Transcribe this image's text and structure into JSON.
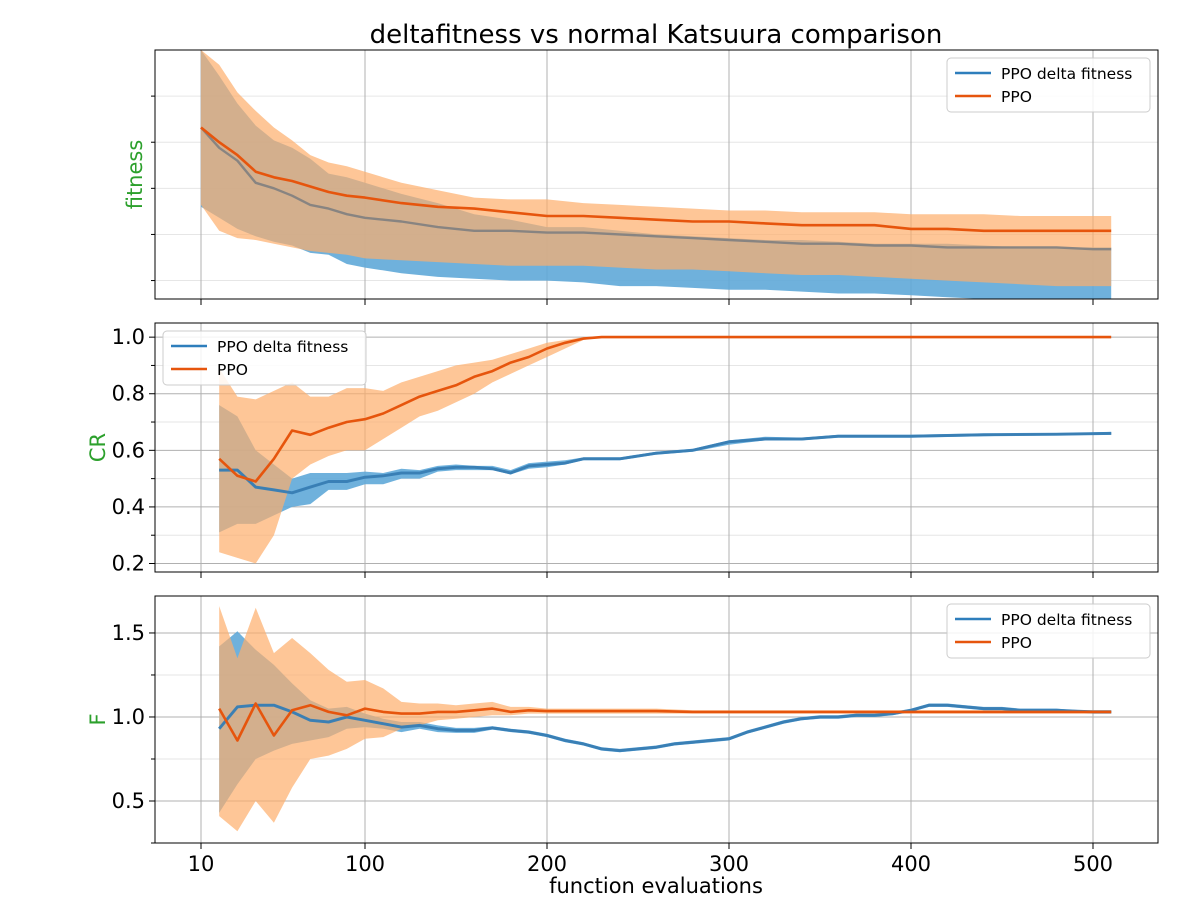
{
  "figure": {
    "title": "deltafitness vs normal Katsuura comparison",
    "xlabel": "function evaluations",
    "x_ticks": [
      "10",
      "100",
      "200",
      "300",
      "400",
      "500"
    ],
    "colors": {
      "delta_line": "#2e7ebc",
      "delta_band": "#5fa8d8",
      "ppo_line": "#e6550d",
      "ppo_band": "#fdae6b",
      "ylabel": "#2ca02c",
      "grid": "#b0b0b0",
      "grid_minor": "#e6e6e6"
    }
  },
  "chart_data": [
    {
      "type": "line",
      "panel": "fitness",
      "ylabel": "fitness",
      "y_ticks_labeled": false,
      "ylim": [
        0,
        1.35
      ],
      "xlim": [
        -15,
        535
      ],
      "grid": true,
      "legend": {
        "placement": "top-right",
        "entries": [
          "PPO delta fitness",
          "PPO"
        ]
      },
      "series": [
        {
          "name": "PPO delta fitness",
          "color": "#2e7ebc",
          "band_color": "#5fa8d8",
          "x": [
            10,
            20,
            30,
            40,
            50,
            60,
            70,
            80,
            90,
            100,
            120,
            140,
            160,
            180,
            200,
            220,
            240,
            260,
            280,
            300,
            320,
            340,
            360,
            380,
            400,
            420,
            440,
            460,
            480,
            500,
            510
          ],
          "mean": [
            0.93,
            0.82,
            0.75,
            0.63,
            0.6,
            0.56,
            0.51,
            0.49,
            0.46,
            0.44,
            0.42,
            0.39,
            0.37,
            0.37,
            0.36,
            0.36,
            0.35,
            0.34,
            0.33,
            0.32,
            0.31,
            0.3,
            0.3,
            0.29,
            0.29,
            0.28,
            0.28,
            0.28,
            0.28,
            0.27,
            0.27
          ],
          "lower": [
            0.5,
            0.44,
            0.38,
            0.34,
            0.31,
            0.29,
            0.25,
            0.24,
            0.19,
            0.17,
            0.14,
            0.12,
            0.11,
            0.1,
            0.1,
            0.09,
            0.07,
            0.07,
            0.06,
            0.05,
            0.05,
            0.04,
            0.03,
            0.03,
            0.02,
            0.01,
            0.0,
            0.0,
            0.0,
            0.0,
            0.0
          ],
          "upper": [
            1.35,
            1.21,
            1.06,
            0.94,
            0.86,
            0.82,
            0.76,
            0.68,
            0.66,
            0.63,
            0.57,
            0.52,
            0.46,
            0.43,
            0.39,
            0.39,
            0.37,
            0.35,
            0.34,
            0.33,
            0.32,
            0.32,
            0.31,
            0.3,
            0.3,
            0.3,
            0.29,
            0.28,
            0.28,
            0.28,
            0.28
          ]
        },
        {
          "name": "PPO",
          "color": "#e6550d",
          "band_color": "#fdae6b",
          "x": [
            10,
            20,
            30,
            40,
            50,
            60,
            70,
            80,
            90,
            100,
            120,
            140,
            160,
            180,
            200,
            220,
            240,
            260,
            280,
            300,
            320,
            340,
            360,
            380,
            400,
            420,
            440,
            460,
            480,
            500,
            510
          ],
          "mean": [
            0.93,
            0.85,
            0.78,
            0.69,
            0.66,
            0.64,
            0.61,
            0.58,
            0.56,
            0.55,
            0.52,
            0.5,
            0.49,
            0.47,
            0.45,
            0.45,
            0.44,
            0.43,
            0.42,
            0.42,
            0.41,
            0.4,
            0.4,
            0.4,
            0.38,
            0.38,
            0.37,
            0.37,
            0.37,
            0.37,
            0.37
          ],
          "lower": [
            0.51,
            0.37,
            0.33,
            0.32,
            0.3,
            0.28,
            0.26,
            0.25,
            0.24,
            0.22,
            0.21,
            0.2,
            0.19,
            0.18,
            0.18,
            0.18,
            0.17,
            0.16,
            0.16,
            0.15,
            0.14,
            0.13,
            0.13,
            0.12,
            0.11,
            0.1,
            0.09,
            0.08,
            0.07,
            0.07,
            0.07
          ],
          "upper": [
            1.35,
            1.27,
            1.12,
            1.02,
            0.93,
            0.86,
            0.78,
            0.74,
            0.72,
            0.69,
            0.63,
            0.59,
            0.55,
            0.54,
            0.54,
            0.52,
            0.51,
            0.5,
            0.49,
            0.48,
            0.48,
            0.47,
            0.47,
            0.47,
            0.46,
            0.46,
            0.46,
            0.45,
            0.45,
            0.45,
            0.45
          ]
        }
      ]
    },
    {
      "type": "line",
      "panel": "CR",
      "ylabel": "CR",
      "ylim": [
        0.17,
        1.05
      ],
      "xlim": [
        -15,
        535
      ],
      "y_ticks": [
        0.2,
        0.4,
        0.6,
        0.8,
        1.0
      ],
      "y_tick_labels": [
        "0.2",
        "0.4",
        "0.6",
        "0.8",
        "1.0"
      ],
      "grid": true,
      "legend": {
        "placement": "top-left",
        "entries": [
          "PPO delta fitness",
          "PPO"
        ]
      },
      "series": [
        {
          "name": "PPO delta fitness",
          "color": "#2e7ebc",
          "band_color": "#5fa8d8",
          "x": [
            20,
            30,
            40,
            50,
            60,
            70,
            80,
            90,
            100,
            110,
            120,
            130,
            140,
            150,
            160,
            170,
            180,
            190,
            200,
            210,
            220,
            240,
            260,
            280,
            300,
            320,
            340,
            360,
            380,
            400,
            440,
            480,
            510
          ],
          "mean": [
            0.53,
            0.53,
            0.47,
            0.46,
            0.45,
            0.47,
            0.49,
            0.49,
            0.505,
            0.51,
            0.52,
            0.52,
            0.535,
            0.54,
            0.54,
            0.535,
            0.52,
            0.545,
            0.55,
            0.555,
            0.57,
            0.57,
            0.59,
            0.6,
            0.63,
            0.64,
            0.64,
            0.65,
            0.65,
            0.65,
            0.655,
            0.657,
            0.66
          ],
          "lower": [
            0.31,
            0.34,
            0.34,
            0.37,
            0.4,
            0.41,
            0.46,
            0.46,
            0.48,
            0.48,
            0.5,
            0.5,
            0.525,
            0.53,
            0.53,
            0.53,
            0.515,
            0.535,
            0.54,
            0.55,
            0.565,
            0.565,
            0.585,
            0.595,
            0.62,
            0.635,
            0.635,
            0.645,
            0.645,
            0.645,
            0.65,
            0.655,
            0.655
          ],
          "upper": [
            0.76,
            0.72,
            0.6,
            0.55,
            0.5,
            0.52,
            0.52,
            0.52,
            0.525,
            0.52,
            0.535,
            0.53,
            0.545,
            0.55,
            0.545,
            0.545,
            0.53,
            0.555,
            0.56,
            0.565,
            0.575,
            0.575,
            0.595,
            0.605,
            0.635,
            0.648,
            0.645,
            0.655,
            0.655,
            0.655,
            0.66,
            0.66,
            0.665
          ]
        },
        {
          "name": "PPO",
          "color": "#e6550d",
          "band_color": "#fdae6b",
          "x": [
            20,
            30,
            40,
            50,
            60,
            70,
            80,
            90,
            100,
            110,
            120,
            130,
            140,
            150,
            160,
            170,
            180,
            190,
            200,
            210,
            220,
            230,
            240,
            260,
            280,
            300,
            340,
            400,
            460,
            510
          ],
          "mean": [
            0.57,
            0.51,
            0.49,
            0.57,
            0.67,
            0.655,
            0.68,
            0.7,
            0.71,
            0.73,
            0.76,
            0.79,
            0.81,
            0.83,
            0.86,
            0.88,
            0.91,
            0.93,
            0.96,
            0.98,
            0.995,
            1.0,
            1.0,
            1.0,
            1.0,
            1.0,
            1.0,
            1.0,
            1.0,
            1.0
          ],
          "lower": [
            0.24,
            0.22,
            0.2,
            0.3,
            0.5,
            0.55,
            0.58,
            0.6,
            0.6,
            0.64,
            0.68,
            0.72,
            0.74,
            0.77,
            0.8,
            0.84,
            0.87,
            0.9,
            0.93,
            0.96,
            0.99,
            1.0,
            1.0,
            1.0,
            1.0,
            1.0,
            1.0,
            1.0,
            1.0,
            1.0
          ],
          "upper": [
            0.89,
            0.79,
            0.78,
            0.81,
            0.84,
            0.79,
            0.79,
            0.82,
            0.82,
            0.81,
            0.84,
            0.86,
            0.88,
            0.9,
            0.91,
            0.92,
            0.94,
            0.96,
            0.98,
            0.99,
            1.0,
            1.0,
            1.0,
            1.0,
            1.0,
            1.0,
            1.0,
            1.0,
            1.0,
            1.0
          ]
        }
      ]
    },
    {
      "type": "line",
      "panel": "F",
      "ylabel": "F",
      "ylim": [
        0.25,
        1.72
      ],
      "xlim": [
        -15,
        535
      ],
      "y_ticks": [
        0.5,
        1.0,
        1.5
      ],
      "y_tick_labels": [
        "0.5",
        "1.0",
        "1.5"
      ],
      "grid": true,
      "legend": {
        "placement": "top-right",
        "entries": [
          "PPO delta fitness",
          "PPO"
        ]
      },
      "series": [
        {
          "name": "PPO delta fitness",
          "color": "#2e7ebc",
          "band_color": "#5fa8d8",
          "x": [
            20,
            30,
            40,
            50,
            60,
            70,
            80,
            90,
            100,
            110,
            120,
            130,
            140,
            150,
            160,
            170,
            180,
            190,
            200,
            210,
            220,
            230,
            240,
            250,
            260,
            270,
            280,
            290,
            300,
            310,
            320,
            330,
            340,
            350,
            360,
            370,
            380,
            390,
            400,
            410,
            420,
            430,
            440,
            450,
            460,
            470,
            480,
            490,
            500,
            510
          ],
          "mean": [
            0.93,
            1.06,
            1.07,
            1.07,
            1.03,
            0.98,
            0.97,
            1.0,
            0.98,
            0.96,
            0.94,
            0.95,
            0.93,
            0.92,
            0.92,
            0.935,
            0.92,
            0.91,
            0.89,
            0.86,
            0.84,
            0.81,
            0.8,
            0.81,
            0.82,
            0.84,
            0.85,
            0.86,
            0.87,
            0.91,
            0.94,
            0.97,
            0.99,
            1.0,
            1.0,
            1.01,
            1.01,
            1.02,
            1.04,
            1.07,
            1.07,
            1.06,
            1.05,
            1.05,
            1.04,
            1.04,
            1.04,
            1.035,
            1.03,
            1.03
          ],
          "lower": [
            0.43,
            0.6,
            0.75,
            0.8,
            0.84,
            0.86,
            0.88,
            0.93,
            0.94,
            0.93,
            0.91,
            0.93,
            0.91,
            0.905,
            0.905,
            0.925,
            0.91,
            0.9,
            0.88,
            0.85,
            0.83,
            0.8,
            0.79,
            0.8,
            0.81,
            0.83,
            0.84,
            0.85,
            0.86,
            0.9,
            0.93,
            0.96,
            0.98,
            0.99,
            0.99,
            1.0,
            1.0,
            1.01,
            1.03,
            1.06,
            1.06,
            1.05,
            1.04,
            1.04,
            1.03,
            1.03,
            1.03,
            1.03,
            1.02,
            1.02
          ],
          "upper": [
            1.42,
            1.51,
            1.4,
            1.31,
            1.2,
            1.1,
            1.05,
            1.06,
            1.02,
            0.99,
            0.97,
            0.97,
            0.95,
            0.935,
            0.935,
            0.945,
            0.93,
            0.92,
            0.9,
            0.87,
            0.85,
            0.82,
            0.81,
            0.82,
            0.83,
            0.85,
            0.86,
            0.87,
            0.88,
            0.92,
            0.95,
            0.98,
            1.0,
            1.01,
            1.01,
            1.02,
            1.02,
            1.03,
            1.05,
            1.08,
            1.08,
            1.07,
            1.06,
            1.06,
            1.05,
            1.05,
            1.05,
            1.04,
            1.04,
            1.04
          ]
        },
        {
          "name": "PPO",
          "color": "#e6550d",
          "band_color": "#fdae6b",
          "x": [
            20,
            30,
            40,
            50,
            60,
            70,
            80,
            90,
            100,
            110,
            120,
            130,
            140,
            150,
            160,
            170,
            180,
            190,
            200,
            220,
            240,
            260,
            280,
            300,
            340,
            400,
            450,
            510
          ],
          "mean": [
            1.05,
            0.86,
            1.08,
            0.89,
            1.04,
            1.07,
            1.03,
            1.01,
            1.05,
            1.03,
            1.02,
            1.02,
            1.03,
            1.03,
            1.04,
            1.05,
            1.03,
            1.04,
            1.035,
            1.035,
            1.035,
            1.035,
            1.03,
            1.03,
            1.03,
            1.03,
            1.03,
            1.03
          ],
          "lower": [
            0.41,
            0.32,
            0.5,
            0.37,
            0.58,
            0.75,
            0.77,
            0.81,
            0.87,
            0.88,
            0.93,
            0.95,
            0.98,
            0.99,
            1.0,
            1.01,
            1.01,
            1.02,
            1.02,
            1.02,
            1.02,
            1.02,
            1.02,
            1.02,
            1.02,
            1.02,
            1.02,
            1.02
          ],
          "upper": [
            1.66,
            1.35,
            1.65,
            1.38,
            1.47,
            1.38,
            1.28,
            1.21,
            1.22,
            1.17,
            1.09,
            1.08,
            1.08,
            1.07,
            1.08,
            1.09,
            1.06,
            1.06,
            1.05,
            1.05,
            1.05,
            1.05,
            1.04,
            1.04,
            1.04,
            1.04,
            1.04,
            1.04
          ]
        }
      ]
    }
  ]
}
